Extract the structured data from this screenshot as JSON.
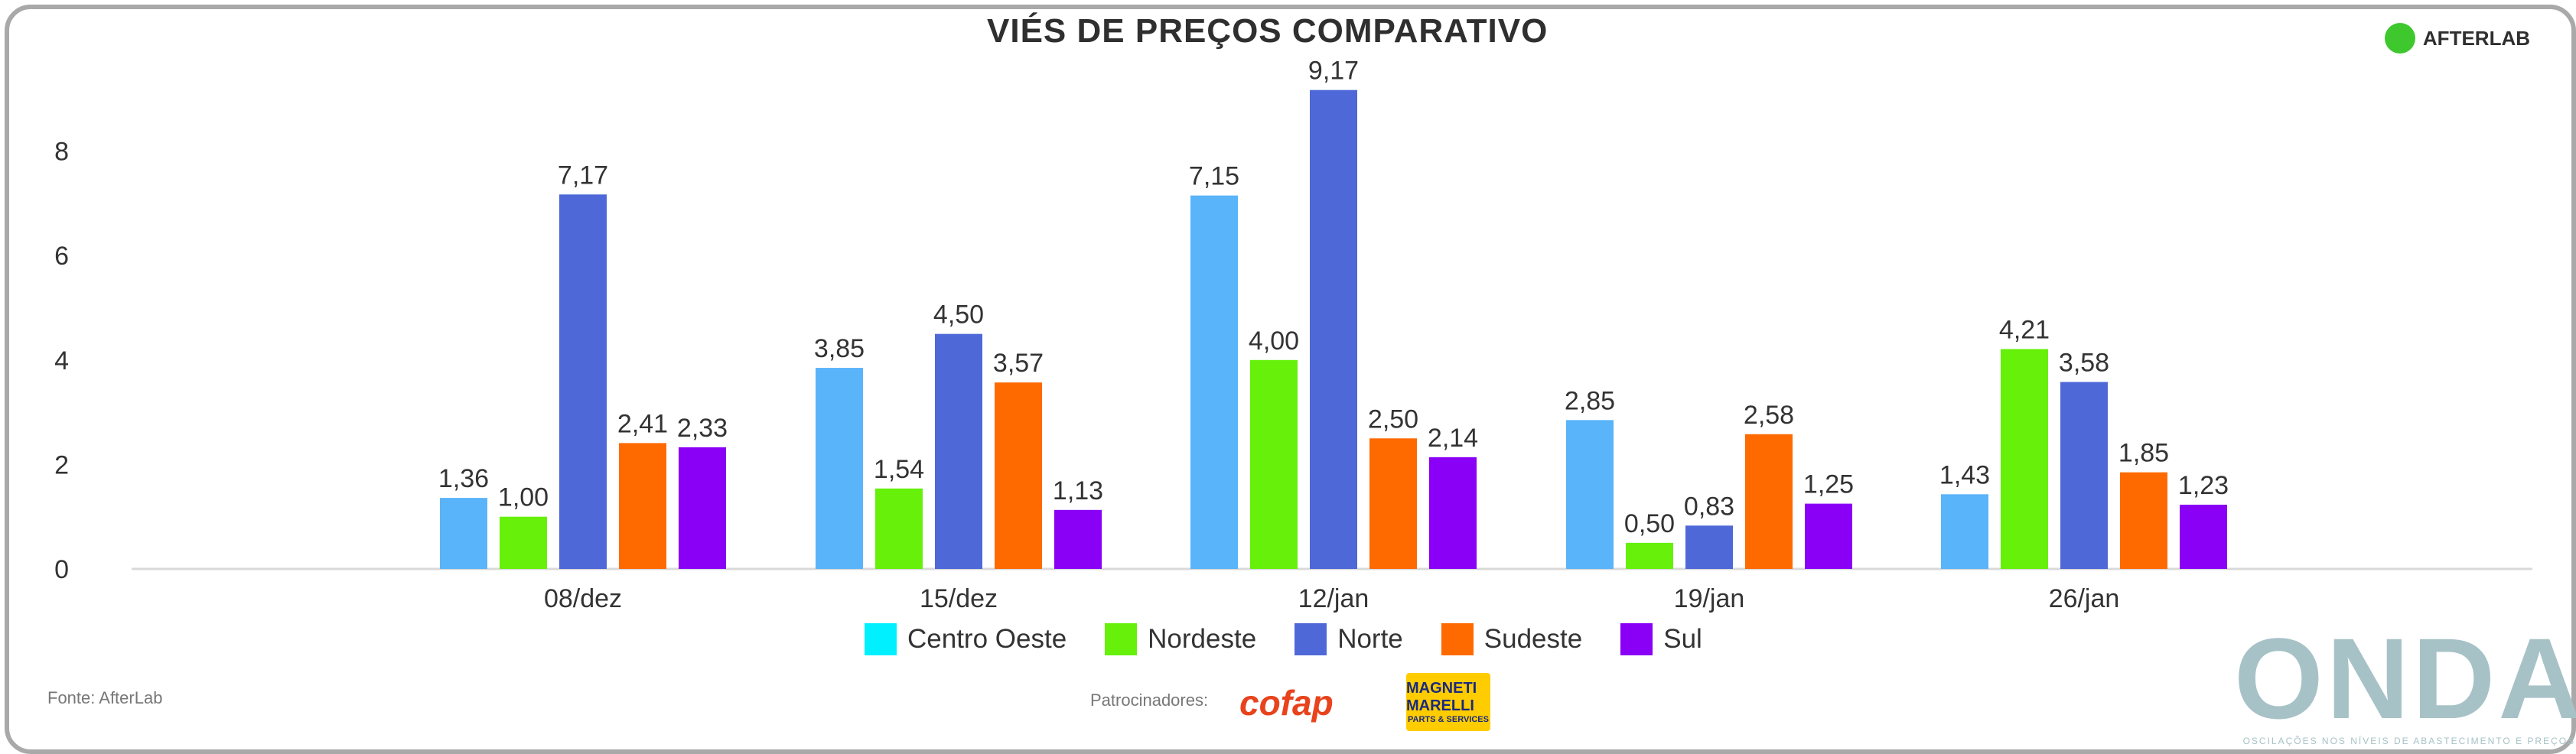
{
  "title": "VIÉS DE PREÇOS COMPARATIVO",
  "brand": "AFTERLAB",
  "chart_data": {
    "type": "bar",
    "title": "VIÉS DE PREÇOS COMPARATIVO",
    "xlabel": "",
    "ylabel": "",
    "ylim": [
      0,
      9
    ],
    "yticks": [
      0,
      2,
      4,
      6,
      8
    ],
    "categories": [
      "08/dez",
      "15/dez",
      "12/jan",
      "19/jan",
      "26/jan"
    ],
    "series": [
      {
        "name": "Centro Oeste",
        "color": "#59b4fa",
        "values": [
          1.36,
          3.85,
          7.15,
          2.85,
          1.43
        ],
        "labels": [
          "1,36",
          "3,85",
          "7,15",
          "2,85",
          "1,43"
        ]
      },
      {
        "name": "Nordeste",
        "color": "#66f00a",
        "values": [
          1.0,
          1.54,
          4.0,
          0.5,
          4.21
        ],
        "labels": [
          "1,00",
          "1,54",
          "4,00",
          "0,50",
          "4,21"
        ]
      },
      {
        "name": "Norte",
        "color": "#4f68d8",
        "values": [
          7.17,
          4.5,
          9.17,
          0.83,
          3.58
        ],
        "labels": [
          "7,17",
          "4,50",
          "9,17",
          "0,83",
          "3,58"
        ]
      },
      {
        "name": "Sudeste",
        "color": "#ff6a00",
        "values": [
          2.41,
          3.57,
          2.5,
          2.58,
          1.85
        ],
        "labels": [
          "2,41",
          "3,57",
          "2,50",
          "2,58",
          "1,85"
        ]
      },
      {
        "name": "Sul",
        "color": "#8a00f6",
        "values": [
          2.33,
          1.13,
          2.14,
          1.25,
          1.23
        ],
        "labels": [
          "2,33",
          "1,13",
          "2,14",
          "1,25",
          "1,23"
        ]
      }
    ],
    "legend": {
      "position": "bottom",
      "items": [
        {
          "name": "Centro Oeste",
          "color": "#00f0ff"
        },
        {
          "name": "Nordeste",
          "color": "#66f00a"
        },
        {
          "name": "Norte",
          "color": "#4f68d8"
        },
        {
          "name": "Sudeste",
          "color": "#ff6a00"
        },
        {
          "name": "Sul",
          "color": "#8a00f6"
        }
      ]
    },
    "grid": false
  },
  "footer": {
    "source": "Fonte: AfterLab",
    "sponsor": "Patrocinadores:",
    "cofap": "cofap",
    "magneti_line1": "MAGNETI MARELLI",
    "magneti_line2": "PARTS & SERVICES",
    "onda": "ONDA",
    "onda_tagline": "OSCILAÇÕES NOS NÍVEIS DE ABASTECIMENTO E PREÇOS"
  }
}
